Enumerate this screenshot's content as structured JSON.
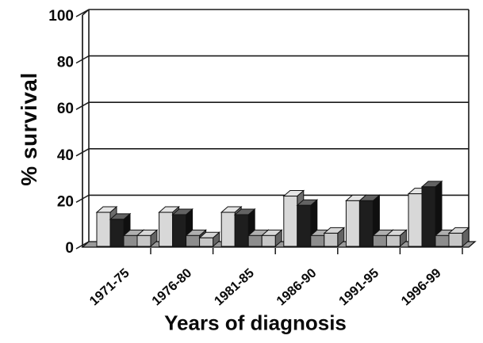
{
  "figure": {
    "background": "#ffffff"
  },
  "chart_data": {
    "type": "bar",
    "bar_style": "3d-extruded",
    "title": "",
    "xlabel": "Years of diagnosis",
    "ylabel": "% survival",
    "ylim": [
      0,
      100
    ],
    "yticks": [
      0,
      20,
      40,
      60,
      80,
      100
    ],
    "grid": true,
    "legend": "none",
    "categories": [
      "1971-75",
      "1976-80",
      "1981-85",
      "1986-90",
      "1991-95",
      "1996-99"
    ],
    "series": [
      {
        "name": "bar-1-light-gray",
        "color": "#d8d8d8",
        "values": [
          15,
          15,
          15,
          22,
          20,
          23
        ]
      },
      {
        "name": "bar-2-black",
        "color": "#1e1e1e",
        "values": [
          12,
          14,
          14,
          18,
          20,
          26
        ]
      },
      {
        "name": "bar-3-mid-gray",
        "color": "#8d8d8d",
        "values": [
          5,
          5,
          5,
          5,
          5,
          5
        ]
      },
      {
        "name": "bar-4-silver",
        "color": "#c6c6c6",
        "values": [
          5,
          4,
          5,
          6,
          5,
          6
        ]
      }
    ],
    "axis_color": "#1a1a1a",
    "floor_color": "#9a9a9a"
  }
}
